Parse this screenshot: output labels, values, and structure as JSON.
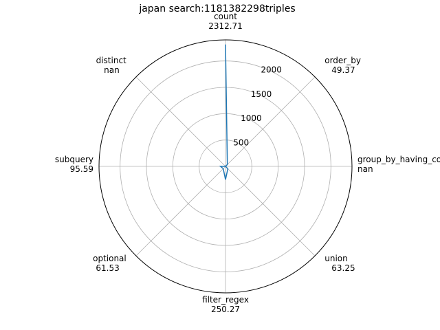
{
  "chart_data": {
    "type": "radar",
    "title": "japan search:1181382298triples",
    "axes": [
      {
        "name": "count",
        "value_label": "2312.71",
        "value": 2312.71
      },
      {
        "name": "order_by",
        "value_label": "49.37",
        "value": 49.37
      },
      {
        "name": "group_by_having_count_distinct",
        "value_label": "nan",
        "value": null
      },
      {
        "name": "union",
        "value_label": "63.25",
        "value": 63.25
      },
      {
        "name": "filter_regex",
        "value_label": "250.27",
        "value": 250.27
      },
      {
        "name": "optional",
        "value_label": "61.53",
        "value": 61.53
      },
      {
        "name": "subquery",
        "value_label": "95.59",
        "value": 95.59
      },
      {
        "name": "distinct",
        "value_label": "nan",
        "value": null
      }
    ],
    "radial_ticks": [
      500,
      1000,
      1500,
      2000
    ],
    "rlim": [
      0,
      2400
    ],
    "grid": true,
    "line_color": "#1f77b4"
  }
}
